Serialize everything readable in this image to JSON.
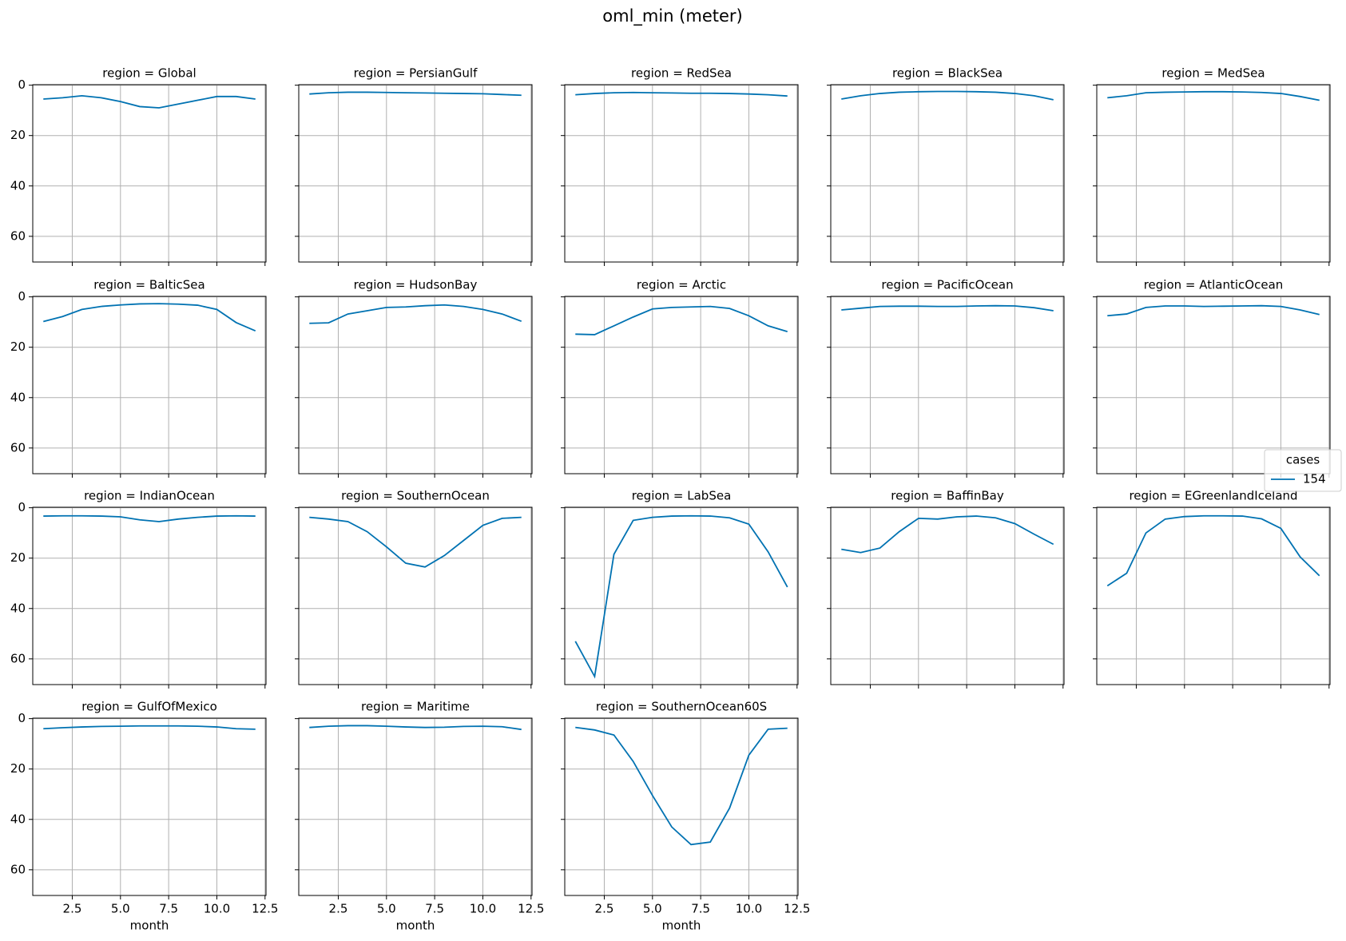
{
  "title": "oml_min (meter)",
  "legend": {
    "title": "cases",
    "loc": "center right"
  },
  "chart_data": [
    {
      "type": "line",
      "title": "region = Global",
      "x": [
        1,
        2,
        3,
        4,
        5,
        6,
        7,
        8,
        9,
        10,
        11,
        12
      ],
      "series": [
        {
          "name": "154",
          "color": "#0072b2",
          "values": [
            5.5,
            5,
            4.2,
            5,
            6.5,
            8.5,
            9,
            7.5,
            6,
            4.5,
            4.5,
            5.5
          ]
        }
      ],
      "xlim": [
        0.45,
        12.55
      ],
      "ylim": [
        -0.2,
        70.2
      ],
      "y_inverted": true,
      "xticks": [
        2.5,
        5,
        7.5,
        10,
        12.5
      ],
      "yticks": [
        0,
        20,
        40,
        60
      ],
      "ytick_labels": true,
      "grid": true
    },
    {
      "type": "line",
      "title": "region = PersianGulf",
      "x": [
        1,
        2,
        3,
        4,
        5,
        6,
        7,
        8,
        9,
        10,
        11,
        12
      ],
      "series": [
        {
          "name": "154",
          "color": "#0072b2",
          "values": [
            3.5,
            3,
            2.8,
            2.8,
            2.9,
            3,
            3.1,
            3.2,
            3.3,
            3.4,
            3.7,
            4
          ]
        }
      ],
      "xlim": [
        0.45,
        12.55
      ],
      "ylim": [
        -0.2,
        70.2
      ],
      "y_inverted": true,
      "xticks": [
        2.5,
        5,
        7.5,
        10,
        12.5
      ],
      "yticks": [
        0,
        20,
        40,
        60
      ],
      "ytick_labels": false,
      "grid": true
    },
    {
      "type": "line",
      "title": "region = RedSea",
      "x": [
        1,
        2,
        3,
        4,
        5,
        6,
        7,
        8,
        9,
        10,
        11,
        12
      ],
      "series": [
        {
          "name": "154",
          "color": "#0072b2",
          "values": [
            3.8,
            3.3,
            3,
            2.9,
            3,
            3.1,
            3.2,
            3.2,
            3.3,
            3.5,
            3.8,
            4.3
          ]
        }
      ],
      "xlim": [
        0.45,
        12.55
      ],
      "ylim": [
        -0.2,
        70.2
      ],
      "y_inverted": true,
      "xticks": [
        2.5,
        5,
        7.5,
        10,
        12.5
      ],
      "yticks": [
        0,
        20,
        40,
        60
      ],
      "ytick_labels": false,
      "grid": true
    },
    {
      "type": "line",
      "title": "region = BlackSea",
      "x": [
        1,
        2,
        3,
        4,
        5,
        6,
        7,
        8,
        9,
        10,
        11,
        12
      ],
      "series": [
        {
          "name": "154",
          "color": "#0072b2",
          "values": [
            5.5,
            4.2,
            3.3,
            2.8,
            2.6,
            2.5,
            2.5,
            2.6,
            2.8,
            3.3,
            4.2,
            5.8
          ]
        }
      ],
      "xlim": [
        0.45,
        12.55
      ],
      "ylim": [
        -0.2,
        70.2
      ],
      "y_inverted": true,
      "xticks": [
        2.5,
        5,
        7.5,
        10,
        12.5
      ],
      "yticks": [
        0,
        20,
        40,
        60
      ],
      "ytick_labels": false,
      "grid": true
    },
    {
      "type": "line",
      "title": "region = MedSea",
      "x": [
        1,
        2,
        3,
        4,
        5,
        6,
        7,
        8,
        9,
        10,
        11,
        12
      ],
      "series": [
        {
          "name": "154",
          "color": "#0072b2",
          "values": [
            5,
            4.2,
            3,
            2.8,
            2.7,
            2.6,
            2.6,
            2.7,
            2.9,
            3.3,
            4.5,
            6
          ]
        }
      ],
      "xlim": [
        0.45,
        12.55
      ],
      "ylim": [
        -0.2,
        70.2
      ],
      "y_inverted": true,
      "xticks": [
        2.5,
        5,
        7.5,
        10,
        12.5
      ],
      "yticks": [
        0,
        20,
        40,
        60
      ],
      "ytick_labels": false,
      "grid": true
    },
    {
      "type": "line",
      "title": "region = BalticSea",
      "x": [
        1,
        2,
        3,
        4,
        5,
        6,
        7,
        8,
        9,
        10,
        11,
        12
      ],
      "series": [
        {
          "name": "154",
          "color": "#0072b2",
          "values": [
            9.8,
            7.8,
            5,
            3.8,
            3.2,
            2.8,
            2.7,
            2.9,
            3.3,
            5,
            10.2,
            13.5
          ]
        }
      ],
      "xlim": [
        0.45,
        12.55
      ],
      "ylim": [
        -0.2,
        70.2
      ],
      "y_inverted": true,
      "xticks": [
        2.5,
        5,
        7.5,
        10,
        12.5
      ],
      "yticks": [
        0,
        20,
        40,
        60
      ],
      "ytick_labels": true,
      "grid": true
    },
    {
      "type": "line",
      "title": "region = HudsonBay",
      "x": [
        1,
        2,
        3,
        4,
        5,
        6,
        7,
        8,
        9,
        10,
        11,
        12
      ],
      "series": [
        {
          "name": "154",
          "color": "#0072b2",
          "values": [
            10.5,
            10.3,
            6.8,
            5.5,
            4.2,
            4,
            3.5,
            3.2,
            3.8,
            5,
            6.8,
            9.7
          ]
        }
      ],
      "xlim": [
        0.45,
        12.55
      ],
      "ylim": [
        -0.2,
        70.2
      ],
      "y_inverted": true,
      "xticks": [
        2.5,
        5,
        7.5,
        10,
        12.5
      ],
      "yticks": [
        0,
        20,
        40,
        60
      ],
      "ytick_labels": false,
      "grid": true
    },
    {
      "type": "line",
      "title": "region = Arctic",
      "x": [
        1,
        2,
        3,
        4,
        5,
        6,
        7,
        8,
        9,
        10,
        11,
        12
      ],
      "series": [
        {
          "name": "154",
          "color": "#0072b2",
          "values": [
            14.8,
            15,
            11.5,
            8,
            4.8,
            4.2,
            4,
            3.8,
            4.6,
            7.5,
            11.5,
            13.8
          ]
        }
      ],
      "xlim": [
        0.45,
        12.55
      ],
      "ylim": [
        -0.2,
        70.2
      ],
      "y_inverted": true,
      "xticks": [
        2.5,
        5,
        7.5,
        10,
        12.5
      ],
      "yticks": [
        0,
        20,
        40,
        60
      ],
      "ytick_labels": false,
      "grid": true
    },
    {
      "type": "line",
      "title": "region = PacificOcean",
      "x": [
        1,
        2,
        3,
        4,
        5,
        6,
        7,
        8,
        9,
        10,
        11,
        12
      ],
      "series": [
        {
          "name": "154",
          "color": "#0072b2",
          "values": [
            5.2,
            4.5,
            3.8,
            3.7,
            3.7,
            3.8,
            3.8,
            3.6,
            3.5,
            3.6,
            4.3,
            5.5
          ]
        }
      ],
      "xlim": [
        0.45,
        12.55
      ],
      "ylim": [
        -0.2,
        70.2
      ],
      "y_inverted": true,
      "xticks": [
        2.5,
        5,
        7.5,
        10,
        12.5
      ],
      "yticks": [
        0,
        20,
        40,
        60
      ],
      "ytick_labels": false,
      "grid": true
    },
    {
      "type": "line",
      "title": "region = AtlanticOcean",
      "x": [
        1,
        2,
        3,
        4,
        5,
        6,
        7,
        8,
        9,
        10,
        11,
        12
      ],
      "series": [
        {
          "name": "154",
          "color": "#0072b2",
          "values": [
            7.5,
            6.8,
            4.2,
            3.6,
            3.6,
            3.8,
            3.7,
            3.6,
            3.5,
            3.8,
            5.2,
            7
          ]
        }
      ],
      "xlim": [
        0.45,
        12.55
      ],
      "ylim": [
        -0.2,
        70.2
      ],
      "y_inverted": true,
      "xticks": [
        2.5,
        5,
        7.5,
        10,
        12.5
      ],
      "yticks": [
        0,
        20,
        40,
        60
      ],
      "ytick_labels": false,
      "grid": true
    },
    {
      "type": "line",
      "title": "region = IndianOcean",
      "x": [
        1,
        2,
        3,
        4,
        5,
        6,
        7,
        8,
        9,
        10,
        11,
        12
      ],
      "series": [
        {
          "name": "154",
          "color": "#0072b2",
          "values": [
            3.3,
            3.2,
            3.2,
            3.3,
            3.6,
            4.8,
            5.5,
            4.5,
            3.8,
            3.3,
            3.2,
            3.3
          ]
        }
      ],
      "xlim": [
        0.45,
        12.55
      ],
      "ylim": [
        -0.2,
        70.2
      ],
      "y_inverted": true,
      "xticks": [
        2.5,
        5,
        7.5,
        10,
        12.5
      ],
      "yticks": [
        0,
        20,
        40,
        60
      ],
      "ytick_labels": true,
      "grid": true
    },
    {
      "type": "line",
      "title": "region = SouthernOcean",
      "x": [
        1,
        2,
        3,
        4,
        5,
        6,
        7,
        8,
        9,
        10,
        11,
        12
      ],
      "series": [
        {
          "name": "154",
          "color": "#0072b2",
          "values": [
            3.8,
            4.5,
            5.5,
            9.5,
            15.5,
            22,
            23.5,
            19,
            13,
            7,
            4.2,
            3.8
          ]
        }
      ],
      "xlim": [
        0.45,
        12.55
      ],
      "ylim": [
        -0.2,
        70.2
      ],
      "y_inverted": true,
      "xticks": [
        2.5,
        5,
        7.5,
        10,
        12.5
      ],
      "yticks": [
        0,
        20,
        40,
        60
      ],
      "ytick_labels": false,
      "grid": true
    },
    {
      "type": "line",
      "title": "region = LabSea",
      "x": [
        1,
        2,
        3,
        4,
        5,
        6,
        7,
        8,
        9,
        10,
        11,
        12
      ],
      "series": [
        {
          "name": "154",
          "color": "#0072b2",
          "values": [
            53,
            67,
            18.5,
            5,
            3.8,
            3.3,
            3.2,
            3.3,
            4,
            6.5,
            17.5,
            31.5
          ]
        }
      ],
      "xlim": [
        0.45,
        12.55
      ],
      "ylim": [
        -0.2,
        70.2
      ],
      "y_inverted": true,
      "xticks": [
        2.5,
        5,
        7.5,
        10,
        12.5
      ],
      "yticks": [
        0,
        20,
        40,
        60
      ],
      "ytick_labels": false,
      "grid": true
    },
    {
      "type": "line",
      "title": "region = BaffinBay",
      "x": [
        1,
        2,
        3,
        4,
        5,
        6,
        7,
        8,
        9,
        10,
        11,
        12
      ],
      "series": [
        {
          "name": "154",
          "color": "#0072b2",
          "values": [
            16.5,
            17.8,
            16,
            9.5,
            4.2,
            4.5,
            3.6,
            3.3,
            4,
            6.3,
            10.5,
            14.5
          ]
        }
      ],
      "xlim": [
        0.45,
        12.55
      ],
      "ylim": [
        -0.2,
        70.2
      ],
      "y_inverted": true,
      "xticks": [
        2.5,
        5,
        7.5,
        10,
        12.5
      ],
      "yticks": [
        0,
        20,
        40,
        60
      ],
      "ytick_labels": false,
      "grid": true
    },
    {
      "type": "line",
      "title": "region = EGreenlandIceland",
      "x": [
        1,
        2,
        3,
        4,
        5,
        6,
        7,
        8,
        9,
        10,
        11,
        12
      ],
      "series": [
        {
          "name": "154",
          "color": "#0072b2",
          "values": [
            31,
            26,
            10,
            4.5,
            3.5,
            3.2,
            3.2,
            3.3,
            4.4,
            8.2,
            19.5,
            27
          ]
        }
      ],
      "xlim": [
        0.45,
        12.55
      ],
      "ylim": [
        -0.2,
        70.2
      ],
      "y_inverted": true,
      "xticks": [
        2.5,
        5,
        7.5,
        10,
        12.5
      ],
      "yticks": [
        0,
        20,
        40,
        60
      ],
      "ytick_labels": false,
      "grid": true
    },
    {
      "type": "line",
      "title": "region = GulfOfMexico",
      "x": [
        1,
        2,
        3,
        4,
        5,
        6,
        7,
        8,
        9,
        10,
        11,
        12
      ],
      "series": [
        {
          "name": "154",
          "color": "#0072b2",
          "values": [
            4,
            3.6,
            3.3,
            3.1,
            3,
            2.9,
            2.9,
            2.9,
            3,
            3.3,
            4,
            4.2
          ]
        }
      ],
      "xlim": [
        0.45,
        12.55
      ],
      "ylim": [
        -0.2,
        70.2
      ],
      "y_inverted": true,
      "xticks": [
        {
          "value": 2.5,
          "label": "2.5"
        },
        {
          "value": 5,
          "label": "5.0"
        },
        {
          "value": 7.5,
          "label": "7.5"
        },
        {
          "value": 10,
          "label": "10.0"
        },
        {
          "value": 12.5,
          "label": "12.5"
        }
      ],
      "yticks": [
        0,
        20,
        40,
        60
      ],
      "ytick_labels": true,
      "xlabel": "month",
      "grid": true
    },
    {
      "type": "line",
      "title": "region = Maritime",
      "x": [
        1,
        2,
        3,
        4,
        5,
        6,
        7,
        8,
        9,
        10,
        11,
        12
      ],
      "series": [
        {
          "name": "154",
          "color": "#0072b2",
          "values": [
            3.5,
            3,
            2.8,
            2.8,
            3,
            3.3,
            3.5,
            3.4,
            3.1,
            3,
            3.2,
            4.3
          ]
        }
      ],
      "xlim": [
        0.45,
        12.55
      ],
      "ylim": [
        -0.2,
        70.2
      ],
      "y_inverted": true,
      "xticks": [
        {
          "value": 2.5,
          "label": "2.5"
        },
        {
          "value": 5,
          "label": "5.0"
        },
        {
          "value": 7.5,
          "label": "7.5"
        },
        {
          "value": 10,
          "label": "10.0"
        },
        {
          "value": 12.5,
          "label": "12.5"
        }
      ],
      "yticks": [
        0,
        20,
        40,
        60
      ],
      "ytick_labels": false,
      "xlabel": "month",
      "grid": true
    },
    {
      "type": "line",
      "title": "region = SouthernOcean60S",
      "x": [
        1,
        2,
        3,
        4,
        5,
        6,
        7,
        8,
        9,
        10,
        11,
        12
      ],
      "series": [
        {
          "name": "154",
          "color": "#0072b2",
          "values": [
            3.5,
            4.5,
            6.5,
            17,
            30.5,
            43,
            50,
            49,
            35.5,
            14.5,
            4.2,
            3.8
          ]
        }
      ],
      "xlim": [
        0.45,
        12.55
      ],
      "ylim": [
        -0.2,
        70.2
      ],
      "y_inverted": true,
      "xticks": [
        {
          "value": 2.5,
          "label": "2.5"
        },
        {
          "value": 5,
          "label": "5.0"
        },
        {
          "value": 7.5,
          "label": "7.5"
        },
        {
          "value": 10,
          "label": "10.0"
        },
        {
          "value": 12.5,
          "label": "12.5"
        }
      ],
      "yticks": [
        0,
        20,
        40,
        60
      ],
      "ytick_labels": false,
      "xlabel": "month",
      "grid": true
    }
  ]
}
